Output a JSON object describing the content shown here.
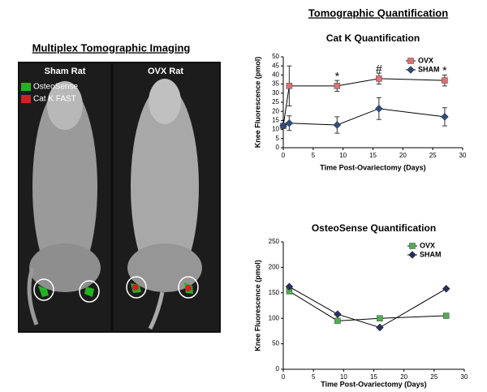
{
  "title": "Tomographic Quantification",
  "imaging": {
    "title": "Multiplex Tomographic Imaging",
    "panels": [
      "Sham Rat",
      "OVX Rat"
    ],
    "legend": [
      "OsteoSense",
      "Cat K FAST"
    ]
  },
  "chart_data": [
    {
      "type": "line",
      "title": "Cat K Quantification",
      "x_label": "Time Post-Ovariectomy (Days)",
      "y_label": "Knee Fluorescence (pmol)",
      "xlim": [
        0,
        30
      ],
      "xticks": [
        0,
        5,
        10,
        15,
        20,
        25,
        30
      ],
      "ylim": [
        0,
        50
      ],
      "yticks": [
        0,
        5,
        10,
        15,
        20,
        25,
        30,
        35,
        40,
        45,
        50
      ],
      "legend": "upper right",
      "series": [
        {
          "name": "OVX",
          "color": "#e07070",
          "marker": "square",
          "x": [
            0,
            1,
            9,
            16,
            27
          ],
          "values": [
            12,
            34,
            34,
            38,
            37
          ],
          "errors": [
            1,
            11,
            3,
            3,
            3
          ]
        },
        {
          "name": "SHAM",
          "color": "#2f4d7e",
          "marker": "diamond",
          "x": [
            0,
            1,
            9,
            16,
            27
          ],
          "values": [
            12,
            13.5,
            12.5,
            21.5,
            17
          ],
          "errors": [
            1,
            4,
            4.5,
            6,
            5
          ]
        }
      ],
      "annotations": [
        {
          "text": "*",
          "x": 9,
          "y": 39
        },
        {
          "text": "#",
          "x": 16,
          "y": 43
        },
        {
          "text": "*",
          "x": 27,
          "y": 42
        }
      ]
    },
    {
      "type": "line",
      "title": "OsteoSense Quantification",
      "x_label": "Time Post-Ovariectomy (Days)",
      "y_label": "Knee Fluorescence (pmol)",
      "xlim": [
        0,
        30
      ],
      "xticks": [
        0,
        5,
        10,
        15,
        20,
        25,
        30
      ],
      "ylim": [
        0,
        250
      ],
      "yticks": [
        0,
        50,
        100,
        150,
        200,
        250
      ],
      "legend": "upper right",
      "series": [
        {
          "name": "OVX",
          "color": "#4caf50",
          "marker": "square",
          "x": [
            1,
            9,
            16,
            27
          ],
          "values": [
            153,
            95,
            100,
            105
          ]
        },
        {
          "name": "SHAM",
          "color": "#2b2f5e",
          "marker": "diamond",
          "x": [
            1,
            9,
            16,
            27
          ],
          "values": [
            162,
            108,
            82,
            158
          ]
        }
      ]
    }
  ]
}
